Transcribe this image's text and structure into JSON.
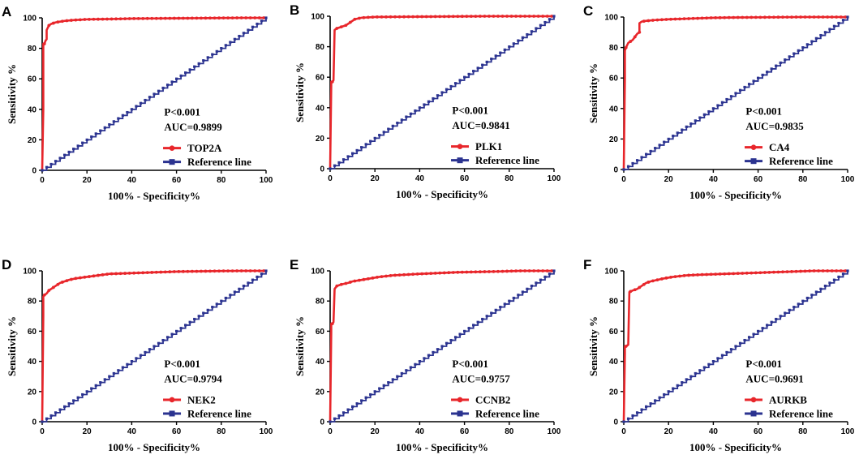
{
  "chart_data": [
    {
      "type": "line",
      "panel": "A",
      "xlabel": "100% - Specificity%",
      "ylabel": "Sensitivity %",
      "xlim": [
        0,
        100
      ],
      "ylim": [
        0,
        100
      ],
      "xticks": [
        "0",
        "20",
        "40",
        "60",
        "80",
        "100"
      ],
      "yticks": [
        "0",
        "20",
        "40",
        "60",
        "80",
        "100"
      ],
      "annotations": [
        "P<0.001",
        "AUC=0.9899"
      ],
      "series": [
        {
          "name": "TOP2A",
          "color": "#e8262b",
          "x": [
            0,
            0.5,
            0.5,
            1,
            1.5,
            2,
            2,
            3,
            4,
            6,
            8,
            10,
            14,
            20,
            30,
            40,
            50,
            60,
            70,
            80,
            90,
            100
          ],
          "y": [
            0,
            40,
            83,
            83,
            85,
            86,
            92,
            95,
            96,
            97,
            97.5,
            98,
            98.5,
            99,
            99.2,
            99.5,
            99.6,
            99.7,
            99.8,
            99.9,
            100,
            100
          ]
        },
        {
          "name": "Reference line",
          "color": "#2b3390",
          "x": [
            0,
            100
          ],
          "y": [
            0,
            100
          ]
        }
      ]
    },
    {
      "type": "line",
      "panel": "B",
      "xlabel": "100% - Specificity%",
      "ylabel": "Sensitivity %",
      "xlim": [
        0,
        100
      ],
      "ylim": [
        0,
        100
      ],
      "xticks": [
        "0",
        "20",
        "40",
        "60",
        "80",
        "100"
      ],
      "yticks": [
        "0",
        "20",
        "40",
        "60",
        "80",
        "100"
      ],
      "annotations": [
        "P<0.001",
        "AUC=0.9841"
      ],
      "series": [
        {
          "name": "PLK1",
          "color": "#e8262b",
          "x": [
            0,
            0.5,
            0.5,
            1,
            1.5,
            2,
            2,
            3,
            5,
            7,
            9,
            11,
            14,
            20,
            30,
            40,
            50,
            60,
            70,
            80,
            90,
            100
          ],
          "y": [
            0,
            55,
            57,
            57,
            58,
            91,
            91,
            92,
            93,
            94,
            96,
            98,
            99,
            99.5,
            99.6,
            99.7,
            99.8,
            99.9,
            100,
            100,
            100,
            100
          ]
        },
        {
          "name": "Reference line",
          "color": "#2b3390",
          "x": [
            0,
            100
          ],
          "y": [
            0,
            100
          ]
        }
      ]
    },
    {
      "type": "line",
      "panel": "C",
      "xlabel": "100% - Specificity%",
      "ylabel": "Sensitivity %",
      "xlim": [
        0,
        100
      ],
      "ylim": [
        0,
        100
      ],
      "xticks": [
        "0",
        "20",
        "40",
        "60",
        "80",
        "100"
      ],
      "yticks": [
        "0",
        "20",
        "40",
        "60",
        "80",
        "100"
      ],
      "annotations": [
        "P<0.001",
        "AUC=0.9835"
      ],
      "series": [
        {
          "name": "CA4",
          "color": "#e8262b",
          "x": [
            0,
            0.5,
            0.5,
            1,
            2,
            3,
            4,
            5,
            6,
            7,
            7,
            8,
            10,
            14,
            20,
            30,
            40,
            50,
            60,
            80,
            100
          ],
          "y": [
            0,
            60,
            78,
            80,
            83,
            84,
            85,
            87,
            89,
            90,
            96,
            97,
            97.5,
            98,
            98.5,
            99,
            99.5,
            99.7,
            99.8,
            100,
            100
          ]
        },
        {
          "name": "Reference line",
          "color": "#2b3390",
          "x": [
            0,
            100
          ],
          "y": [
            0,
            100
          ]
        }
      ]
    },
    {
      "type": "line",
      "panel": "D",
      "xlabel": "100% - Specificity%",
      "ylabel": "Sensitivity %",
      "xlim": [
        0,
        100
      ],
      "ylim": [
        0,
        100
      ],
      "xticks": [
        "0",
        "20",
        "40",
        "60",
        "80",
        "100"
      ],
      "yticks": [
        "0",
        "20",
        "40",
        "60",
        "80",
        "100"
      ],
      "annotations": [
        "P<0.001",
        "AUC=0.9794"
      ],
      "series": [
        {
          "name": "NEK2",
          "color": "#e8262b",
          "x": [
            0,
            0.5,
            0.5,
            1,
            2,
            3,
            4,
            6,
            8,
            10,
            12,
            15,
            20,
            25,
            30,
            40,
            50,
            60,
            70,
            80,
            90,
            100
          ],
          "y": [
            0,
            70,
            83,
            84,
            85,
            87,
            88,
            90,
            92,
            93,
            94,
            95,
            96,
            97,
            98,
            98.5,
            99,
            99.5,
            99.7,
            99.9,
            100,
            100
          ]
        },
        {
          "name": "Reference line",
          "color": "#2b3390",
          "x": [
            0,
            100
          ],
          "y": [
            0,
            100
          ]
        }
      ]
    },
    {
      "type": "line",
      "panel": "E",
      "xlabel": "100% - Specificity%",
      "ylabel": "Sensitivity %",
      "xlim": [
        0,
        100
      ],
      "ylim": [
        0,
        100
      ],
      "xticks": [
        "0",
        "20",
        "40",
        "60",
        "80",
        "100"
      ],
      "yticks": [
        "0",
        "20",
        "40",
        "60",
        "80",
        "100"
      ],
      "annotations": [
        "P<0.001",
        "AUC=0.9757"
      ],
      "series": [
        {
          "name": "CCNB2",
          "color": "#e8262b",
          "x": [
            0,
            0.5,
            0.5,
            1,
            1.5,
            2,
            2,
            3,
            5,
            8,
            10,
            14,
            18,
            22,
            28,
            34,
            40,
            48,
            56,
            65,
            75,
            85,
            100
          ],
          "y": [
            0,
            60,
            65,
            65,
            66,
            88,
            88,
            90,
            91,
            92,
            93,
            94,
            95,
            96,
            97,
            97.5,
            98,
            98.5,
            99,
            99.3,
            99.6,
            100,
            100
          ]
        },
        {
          "name": "Reference line",
          "color": "#2b3390",
          "x": [
            0,
            100
          ],
          "y": [
            0,
            100
          ]
        }
      ]
    },
    {
      "type": "line",
      "panel": "F",
      "xlabel": "100% - Specificity%",
      "ylabel": "Sensitivity %",
      "xlim": [
        0,
        100
      ],
      "ylim": [
        0,
        100
      ],
      "xticks": [
        "0",
        "20",
        "40",
        "60",
        "80",
        "100"
      ],
      "yticks": [
        "0",
        "20",
        "40",
        "60",
        "80",
        "100"
      ],
      "annotations": [
        "P<0.001",
        "AUC=0.9691"
      ],
      "series": [
        {
          "name": "AURKB",
          "color": "#e8262b",
          "x": [
            0,
            0.5,
            0.5,
            1,
            2,
            2.5,
            2.5,
            4,
            6,
            8,
            10,
            12,
            15,
            18,
            22,
            28,
            35,
            45,
            55,
            65,
            75,
            85,
            100
          ],
          "y": [
            0,
            45,
            50,
            50,
            51,
            86,
            86,
            87,
            88,
            90,
            92,
            93,
            94,
            95,
            96,
            97,
            97.5,
            98,
            98.5,
            99,
            99.5,
            100,
            100
          ]
        },
        {
          "name": "Reference line",
          "color": "#2b3390",
          "x": [
            0,
            100
          ],
          "y": [
            0,
            100
          ]
        }
      ]
    }
  ]
}
